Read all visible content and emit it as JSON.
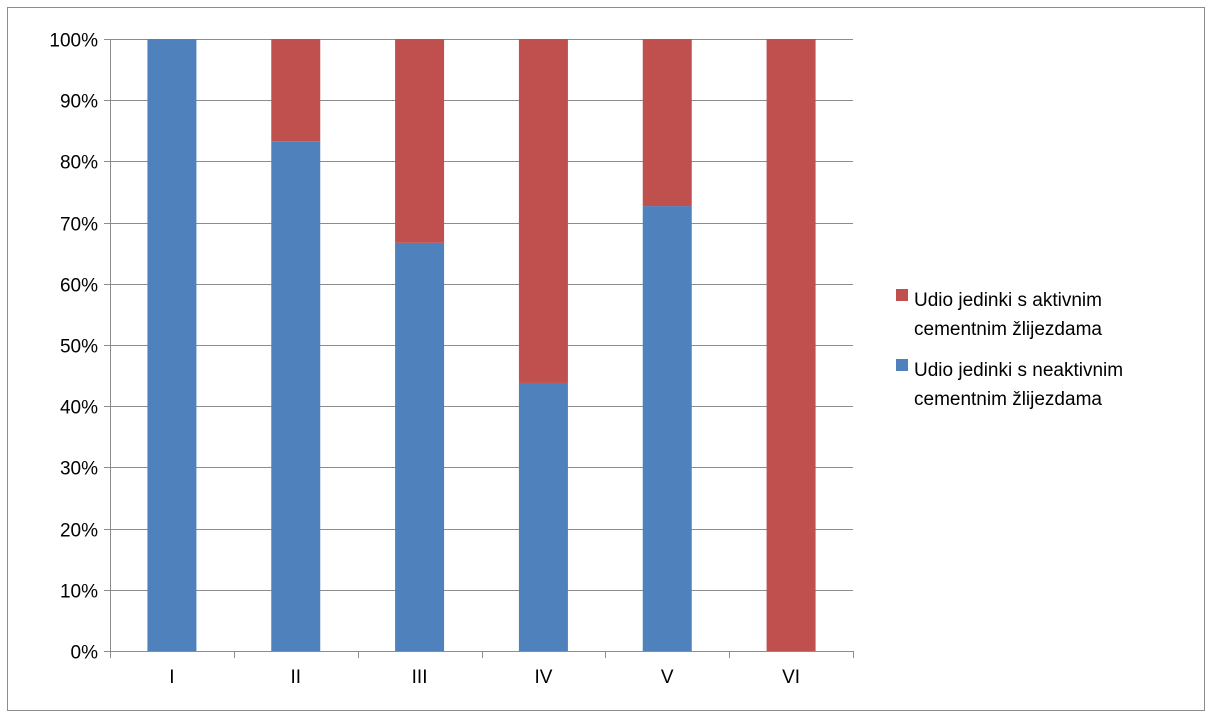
{
  "chart_data": {
    "type": "bar",
    "stacked": true,
    "normalized_percent": true,
    "categories": [
      "I",
      "II",
      "III",
      "IV",
      "V",
      "VI"
    ],
    "series": [
      {
        "name": "Udio jedinki s neaktivnim cementnim žlijezdama",
        "legend_lines": [
          "Udio jedinki s neaktivnim",
          "cementnim žlijezdama"
        ],
        "color": "#4F81BD",
        "values": [
          100,
          83.3,
          66.7,
          43.8,
          72.7,
          0
        ]
      },
      {
        "name": "Udio jedinki s aktivnim cementnim žlijezdama",
        "legend_lines": [
          "Udio jedinki s aktivnim",
          "cementnim žlijezdama"
        ],
        "color": "#C0504D",
        "values": [
          0,
          16.7,
          33.3,
          56.2,
          27.3,
          100
        ]
      }
    ],
    "ylim": [
      0,
      100
    ],
    "yticks": [
      "0%",
      "10%",
      "20%",
      "30%",
      "40%",
      "50%",
      "60%",
      "70%",
      "80%",
      "90%",
      "100%"
    ],
    "title": "",
    "xlabel": "",
    "ylabel": "",
    "grid": true,
    "legend_position": "right"
  }
}
